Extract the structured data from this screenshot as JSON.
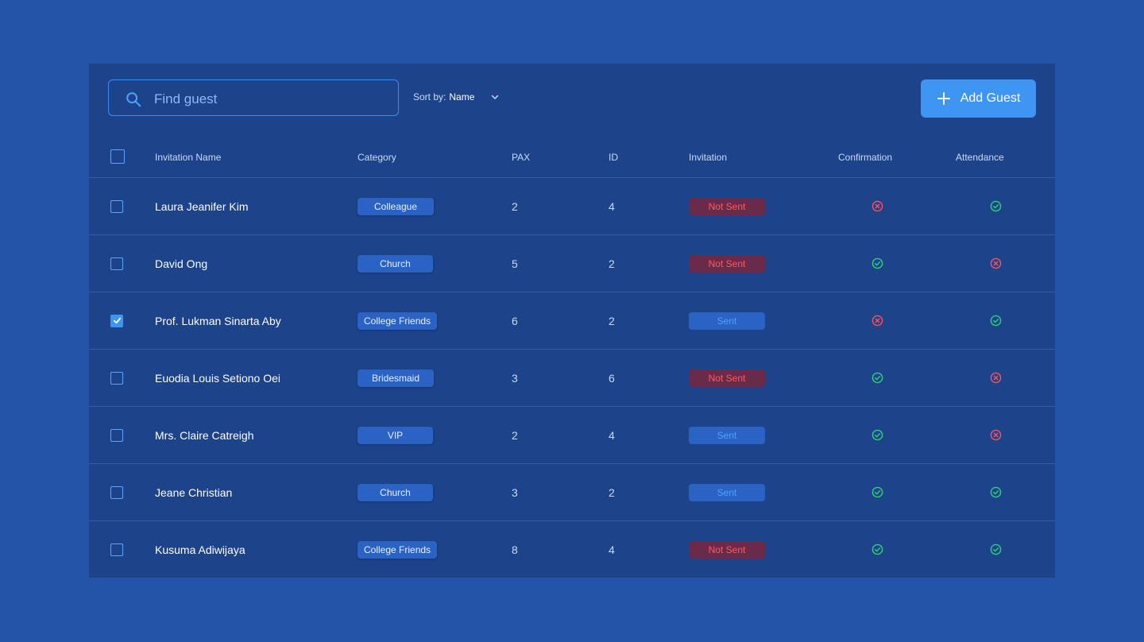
{
  "toolbar": {
    "search_placeholder": "Find guest",
    "sort_label": "Sort by:",
    "sort_value": "Name",
    "add_button_label": "Add Guest"
  },
  "table": {
    "headers": {
      "name": "Invitation Name",
      "category": "Category",
      "pax": "PAX",
      "id": "ID",
      "invitation": "Invitation",
      "confirmation": "Confirmation",
      "attendance": "Attendance"
    },
    "rows": [
      {
        "checked": false,
        "name": "Laura Jeanifer Kim",
        "category": "Colleague",
        "pax": "2",
        "id": "4",
        "invitation": "Not Sent",
        "confirmation": "no",
        "attendance": "yes"
      },
      {
        "checked": false,
        "name": "David Ong",
        "category": "Church",
        "pax": "5",
        "id": "2",
        "invitation": "Not Sent",
        "confirmation": "yes",
        "attendance": "no"
      },
      {
        "checked": true,
        "name": "Prof. Lukman Sinarta Aby",
        "category": "College Friends",
        "pax": "6",
        "id": "2",
        "invitation": "Sent",
        "confirmation": "no",
        "attendance": "yes"
      },
      {
        "checked": false,
        "name": "Euodia Louis Setiono Oei",
        "category": "Bridesmaid",
        "pax": "3",
        "id": "6",
        "invitation": "Not Sent",
        "confirmation": "yes",
        "attendance": "no"
      },
      {
        "checked": false,
        "name": "Mrs. Claire Catreigh",
        "category": "VIP",
        "pax": "2",
        "id": "4",
        "invitation": "Sent",
        "confirmation": "yes",
        "attendance": "no"
      },
      {
        "checked": false,
        "name": "Jeane Christian",
        "category": "Church",
        "pax": "3",
        "id": "2",
        "invitation": "Sent",
        "confirmation": "yes",
        "attendance": "yes"
      },
      {
        "checked": false,
        "name": "Kusuma Adiwijaya",
        "category": "College Friends",
        "pax": "8",
        "id": "4",
        "invitation": "Not Sent",
        "confirmation": "yes",
        "attendance": "yes"
      }
    ]
  },
  "colors": {
    "background": "#2454a6",
    "panel": "#1d438a",
    "accent": "#3f95f2",
    "success": "#2fd07a",
    "danger": "#ff4f5e"
  }
}
